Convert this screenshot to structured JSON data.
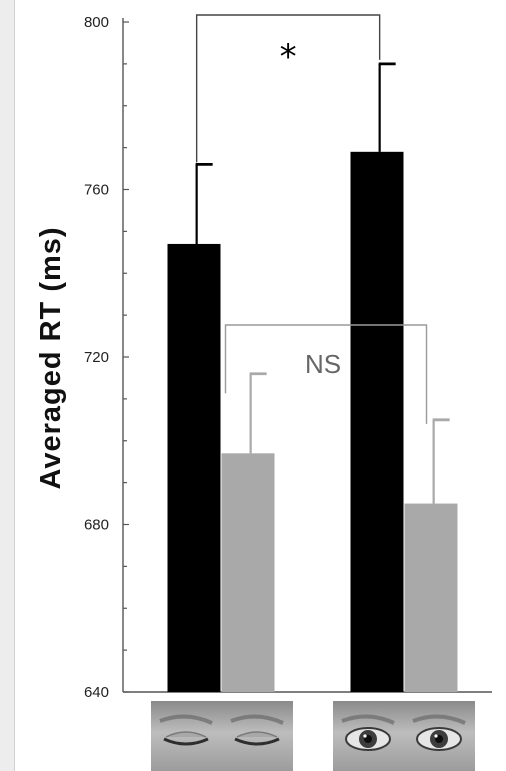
{
  "chart_data": {
    "type": "bar",
    "categories": [
      "closed-eyes",
      "open-eyes"
    ],
    "series": [
      {
        "color": "#000000",
        "values": [
          747,
          769
        ],
        "errors": [
          19,
          21
        ]
      },
      {
        "color": "#a9a9a9",
        "values": [
          697,
          685
        ],
        "errors": [
          19,
          20
        ]
      }
    ],
    "ylabel": "Averaged RT (ms)",
    "ylim": [
      640,
      800
    ],
    "yticks": [
      640,
      680,
      720,
      760,
      800
    ],
    "yticks_labeled": [
      640,
      680,
      720,
      760,
      800
    ],
    "significance": [
      {
        "label": "*",
        "between": "black bars"
      },
      {
        "label": "NS",
        "between": "gray bars"
      }
    ],
    "grid": false
  },
  "category_images": [
    {
      "icon": "closed-eyes-photo"
    },
    {
      "icon": "open-eyes-photo"
    }
  ]
}
